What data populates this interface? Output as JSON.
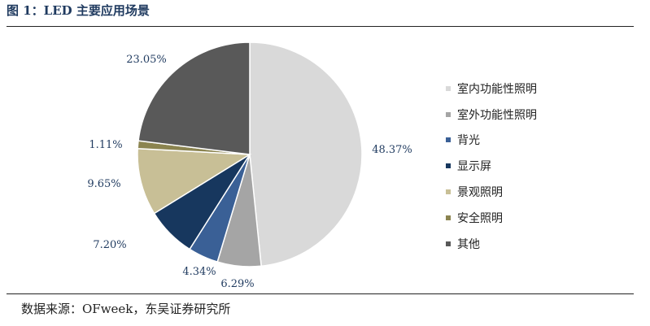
{
  "figure_title": "图 1：LED 主要应用场景",
  "source": "数据来源：OFweek，东吴证券研究所",
  "chart_data": {
    "type": "pie",
    "title": "",
    "categories": [
      "室内功能性照明",
      "室外功能性照明",
      "背光",
      "显示屏",
      "景观照明",
      "安全照明",
      "其他"
    ],
    "values": [
      48.37,
      6.29,
      4.34,
      7.2,
      9.65,
      1.11,
      23.05
    ],
    "value_labels": [
      "48.37%",
      "6.29%",
      "4.34%",
      "7.20%",
      "9.65%",
      "1.11%",
      "23.05%"
    ],
    "colors": [
      "#d9d9d9",
      "#a5a5a5",
      "#3a6096",
      "#17375e",
      "#c8bf96",
      "#8b8450",
      "#595959"
    ],
    "legend_placement": "right",
    "start_angle": "top, clockwise"
  }
}
